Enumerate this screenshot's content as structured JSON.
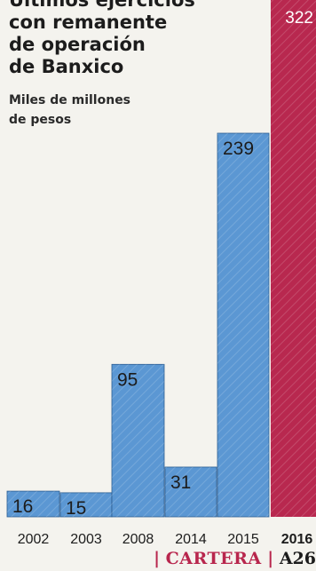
{
  "title": [
    "Últimos ejercicios",
    "con remanente",
    "de operación",
    "de Banxico"
  ],
  "subtitle": [
    "Miles de millones",
    "de pesos"
  ],
  "colors": {
    "bar": "#5b97d3",
    "highlight": "#b8284f",
    "text": "#1c1c1c",
    "background": "#f4f3ee"
  },
  "chart_data": {
    "type": "bar",
    "categories": [
      "2002",
      "2003",
      "2008",
      "2014",
      "2015",
      "2016"
    ],
    "values": [
      16,
      15,
      95,
      31,
      239,
      322
    ],
    "data_labels": [
      "16",
      "15",
      "95",
      "31",
      "239",
      "322"
    ],
    "highlight_category": "2016",
    "ylim": [
      0,
      322
    ],
    "grid": false,
    "legend": "none"
  },
  "footer": {
    "section": "CARTERA",
    "page": "A26"
  }
}
